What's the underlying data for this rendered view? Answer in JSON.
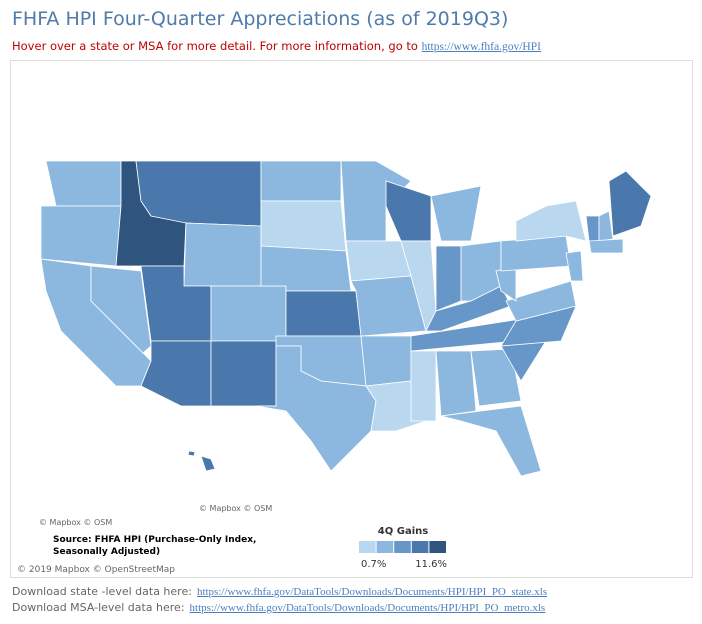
{
  "header": {
    "title": "FHFA HPI Four-Quarter Appreciations (as of 2019Q3)",
    "subtitle": "Hover over a state or MSA for more detail. For more information, go to",
    "subtitle_link": "https://www.fhfa.gov/HPI"
  },
  "map": {
    "attribution_left": "© Mapbox © OSM",
    "attribution_inset": "© Mapbox © OSM",
    "attribution_bottom": "© 2019 Mapbox © OpenStreetMap",
    "source": "Source:  FHFA HPI (Purchase-Only Index, Seasonally Adjusted)"
  },
  "legend": {
    "title": "4Q Gains",
    "min_label": "0.7%",
    "max_label": "11.6%",
    "colors": [
      "#b9d7ee",
      "#8cb8e0",
      "#6796c8",
      "#4a78ad",
      "#2f557f"
    ]
  },
  "downloads": [
    {
      "text": "Download state -level data here:",
      "link": "https://www.fhfa.gov/DataTools/Downloads/Documents/HPI/HPI_PO_state.xls"
    },
    {
      "text": "Download MSA-level data here:",
      "link": "https://www.fhfa.gov/DataTools/Downloads/Documents/HPI/HPI_PO_metro.xls"
    }
  ]
}
